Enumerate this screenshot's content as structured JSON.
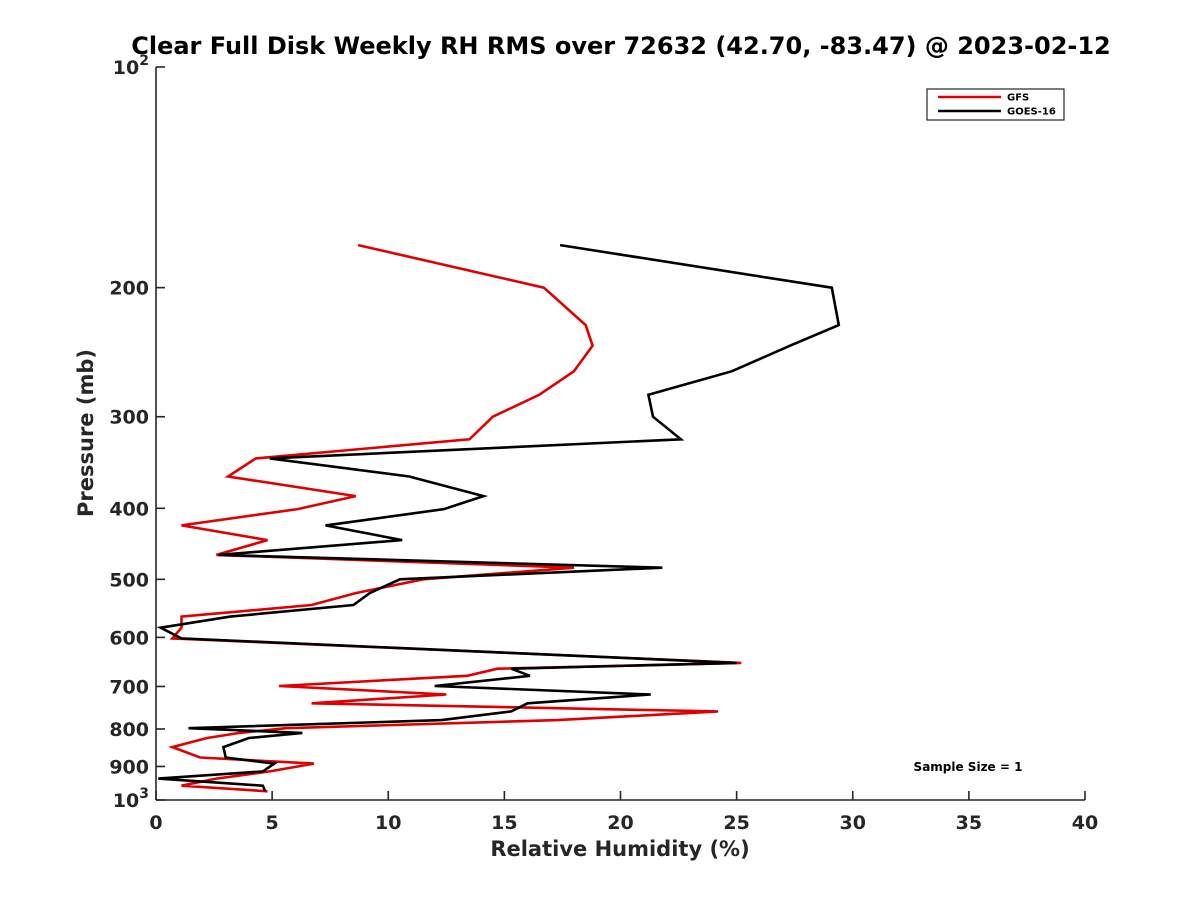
{
  "chart_data": {
    "type": "line",
    "title": "Clear Full Disk Weekly RH RMS over 72632 (42.70, -83.47) @ 2023-02-12",
    "xlabel": "Relative Humidity (%)",
    "ylabel": "Pressure (mb)",
    "xlim": [
      0,
      40
    ],
    "ylim": [
      100,
      1000
    ],
    "yscale": "log",
    "yreversed": true,
    "x_ticks": [
      "0",
      "5",
      "10",
      "15",
      "20",
      "25",
      "30",
      "35",
      "40"
    ],
    "y_ticks": [
      {
        "value": 100,
        "base": "10",
        "exp": "2"
      },
      {
        "value": 200,
        "label": "200"
      },
      {
        "value": 300,
        "label": "300"
      },
      {
        "value": 400,
        "label": "400"
      },
      {
        "value": 500,
        "label": "500"
      },
      {
        "value": 600,
        "label": "600"
      },
      {
        "value": 700,
        "label": "700"
      },
      {
        "value": 800,
        "label": "800"
      },
      {
        "value": 900,
        "label": "900"
      },
      {
        "value": 1000,
        "base": "10",
        "exp": "3"
      }
    ],
    "legend_position": "top-right",
    "grid": false,
    "annotation": "Sample Size = 1",
    "series": [
      {
        "name": "GFS",
        "color": "#e00000",
        "points": [
          [
            8.7,
            175
          ],
          [
            16.7,
            200
          ],
          [
            18.5,
            225
          ],
          [
            18.8,
            240
          ],
          [
            18.0,
            260
          ],
          [
            16.5,
            280
          ],
          [
            14.5,
            300
          ],
          [
            13.5,
            322
          ],
          [
            4.3,
            342
          ],
          [
            3.1,
            362
          ],
          [
            8.6,
            385
          ],
          [
            6.1,
            401
          ],
          [
            1.1,
            422
          ],
          [
            4.8,
            442
          ],
          [
            2.6,
            463
          ],
          [
            18.0,
            482
          ],
          [
            11.5,
            500
          ],
          [
            8.6,
            522
          ],
          [
            6.7,
            542
          ],
          [
            1.1,
            562
          ],
          [
            1.1,
            582
          ],
          [
            0.7,
            602
          ],
          [
            25.2,
            650
          ],
          [
            14.7,
            662
          ],
          [
            13.4,
            677
          ],
          [
            5.3,
            699
          ],
          [
            12.5,
            718
          ],
          [
            6.7,
            738
          ],
          [
            24.2,
            757
          ],
          [
            17.3,
            778
          ],
          [
            5.6,
            798
          ],
          [
            3.6,
            810
          ],
          [
            2.2,
            823
          ],
          [
            0.7,
            847
          ],
          [
            1.9,
            875
          ],
          [
            6.8,
            892
          ],
          [
            4.9,
            914
          ],
          [
            2.6,
            935
          ],
          [
            1.1,
            956
          ],
          [
            4.8,
            973
          ]
        ]
      },
      {
        "name": "GOES-16",
        "color": "#000000",
        "points": [
          [
            17.4,
            175
          ],
          [
            29.1,
            200
          ],
          [
            29.4,
            225
          ],
          [
            27.3,
            240
          ],
          [
            24.8,
            260
          ],
          [
            21.2,
            280
          ],
          [
            21.4,
            300
          ],
          [
            22.6,
            322
          ],
          [
            4.9,
            342
          ],
          [
            10.9,
            362
          ],
          [
            14.1,
            385
          ],
          [
            12.4,
            401
          ],
          [
            7.3,
            422
          ],
          [
            10.6,
            442
          ],
          [
            2.7,
            463
          ],
          [
            21.8,
            482
          ],
          [
            10.5,
            500
          ],
          [
            9.2,
            522
          ],
          [
            8.5,
            542
          ],
          [
            3.2,
            562
          ],
          [
            0.2,
            582
          ],
          [
            1.1,
            602
          ],
          [
            25.0,
            650
          ],
          [
            15.3,
            662
          ],
          [
            16.1,
            677
          ],
          [
            12.0,
            699
          ],
          [
            21.3,
            718
          ],
          [
            16.0,
            738
          ],
          [
            15.3,
            757
          ],
          [
            12.3,
            778
          ],
          [
            1.4,
            798
          ],
          [
            6.3,
            810
          ],
          [
            4.0,
            823
          ],
          [
            2.9,
            847
          ],
          [
            3.0,
            875
          ],
          [
            5.1,
            892
          ],
          [
            4.6,
            914
          ],
          [
            0.1,
            935
          ],
          [
            4.6,
            956
          ],
          [
            4.7,
            973
          ]
        ]
      }
    ]
  }
}
